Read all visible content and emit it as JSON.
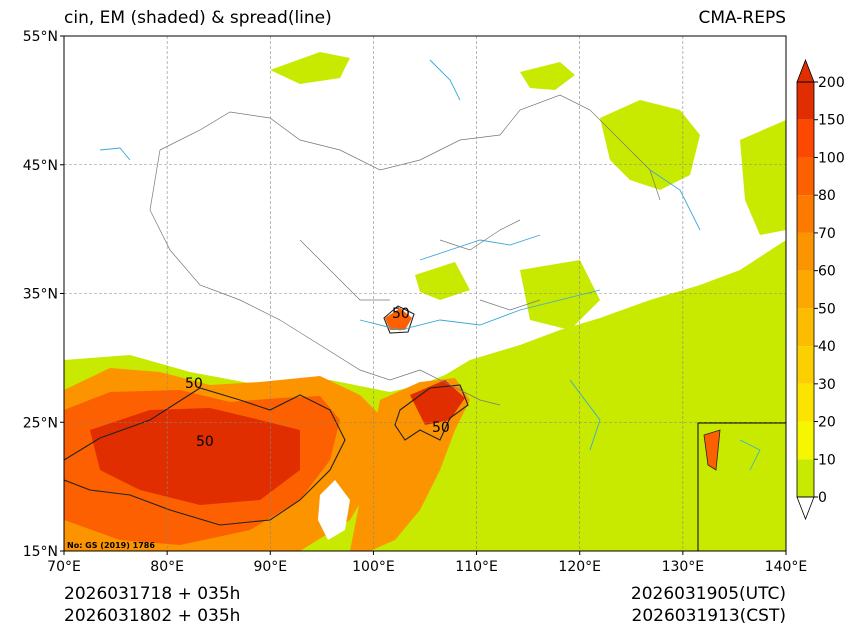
{
  "header": {
    "title": "cin, EM (shaded) & spread(line)",
    "source": "CMA-REPS"
  },
  "footer": {
    "init_utc": "2026031718  +  035h",
    "init_cst": "2026031802  +  035h",
    "valid_utc": "2026031905(UTC)",
    "valid_cst": "2026031913(CST)"
  },
  "map": {
    "lat_labels": [
      "55°N",
      "45°N",
      "35°N",
      "25°N",
      "15°N"
    ],
    "lon_labels": [
      "70°E",
      "80°E",
      "90°E",
      "100°E",
      "110°E",
      "120°E",
      "130°E",
      "140°E"
    ],
    "credit": "No: GS (2019) 1786",
    "contour_label": "50",
    "ocean_color": "#c8ea00",
    "land_color": "#ffffff"
  },
  "colorbar": {
    "levels": [
      "0",
      "10",
      "20",
      "30",
      "40",
      "50",
      "60",
      "70",
      "80",
      "100",
      "150",
      "200"
    ],
    "colors": [
      "#c8ea00",
      "#f6f600",
      "#fce300",
      "#fcd000",
      "#fcbd00",
      "#fca800",
      "#fc9400",
      "#fc7a00",
      "#fc6000",
      "#fc4800",
      "#e02e00"
    ]
  }
}
